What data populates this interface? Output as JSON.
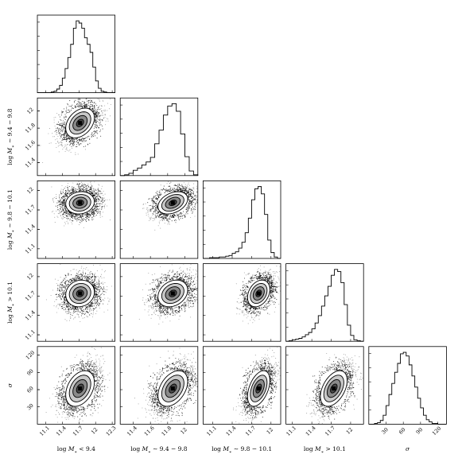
{
  "chart_data": {
    "type": "scatter",
    "variables": [
      {
        "key": "m1",
        "label": "log M_* < 9.4",
        "label_parts": [
          "log ",
          "M",
          "∗",
          " < 9.4"
        ],
        "range": [
          10.95,
          12.35
        ],
        "ticks": [
          11.1,
          11.4,
          11.7,
          12.0,
          12.3
        ],
        "mean": 11.72,
        "sd": 0.15
      },
      {
        "key": "m2",
        "label": "log M_* ~ 9.4 − 9.8",
        "label_parts": [
          "log ",
          "M",
          "∗",
          " ∼ 9.4 − 9.8"
        ],
        "range": [
          11.25,
          12.15
        ],
        "ticks": [
          11.4,
          11.6,
          11.8,
          12.0
        ],
        "mean": 11.86,
        "sd": 0.1
      },
      {
        "key": "m3",
        "label": "log M_* ~ 9.8 − 10.1",
        "label_parts": [
          "log ",
          "M",
          "∗",
          " ∼ 9.8 − 10.1"
        ],
        "range": [
          10.95,
          12.15
        ],
        "ticks": [
          11.1,
          11.4,
          11.7,
          12.0
        ],
        "mean": 11.81,
        "sd": 0.1
      },
      {
        "key": "m4",
        "label": "log M_* > 10.1",
        "label_parts": [
          "log ",
          "M",
          "∗",
          " > 10.1"
        ],
        "range": [
          11.0,
          12.2
        ],
        "ticks": [
          11.1,
          11.4,
          11.7,
          12.0
        ],
        "mean": 11.74,
        "sd": 0.12
      },
      {
        "key": "sigma",
        "label": "σ",
        "label_parts": [
          "",
          "σ",
          "",
          ""
        ],
        "range": [
          0,
          135
        ],
        "ticks": [
          30,
          60,
          90,
          120
        ],
        "mean": 62,
        "sd": 18
      }
    ],
    "histograms": [
      {
        "variable": "m1",
        "bin_edges": [
          10.95,
          11.0,
          11.05,
          11.1,
          11.15,
          11.2,
          11.25,
          11.3,
          11.35,
          11.4,
          11.45,
          11.5,
          11.55,
          11.6,
          11.65,
          11.7,
          11.75,
          11.8,
          11.85,
          11.9,
          11.95,
          12.0,
          12.05,
          12.1,
          12.15,
          12.2,
          12.25,
          12.3,
          12.35
        ],
        "counts": [
          0,
          0,
          0,
          0,
          0,
          1,
          2,
          5,
          10,
          20,
          33,
          48,
          66,
          88,
          98,
          95,
          88,
          75,
          66,
          55,
          35,
          16,
          6,
          2,
          1,
          0,
          0,
          0
        ]
      },
      {
        "variable": "m2",
        "bin_edges": [
          11.25,
          11.3,
          11.35,
          11.4,
          11.45,
          11.5,
          11.55,
          11.6,
          11.65,
          11.7,
          11.75,
          11.8,
          11.85,
          11.9,
          11.95,
          12.0,
          12.05,
          12.1,
          12.15
        ],
        "counts": [
          0,
          1,
          3,
          7,
          10,
          14,
          18,
          24,
          42,
          60,
          80,
          92,
          95,
          85,
          55,
          25,
          6,
          1
        ]
      },
      {
        "variable": "m3",
        "bin_edges": [
          10.95,
          11.0,
          11.05,
          11.1,
          11.15,
          11.2,
          11.25,
          11.3,
          11.35,
          11.4,
          11.45,
          11.5,
          11.55,
          11.6,
          11.65,
          11.7,
          11.75,
          11.8,
          11.85,
          11.9,
          11.95,
          12.0,
          12.05,
          12.1,
          12.15
        ],
        "counts": [
          0,
          0,
          1,
          1,
          1,
          2,
          2,
          3,
          4,
          7,
          9,
          14,
          22,
          35,
          55,
          80,
          95,
          98,
          88,
          60,
          25,
          8,
          2,
          0
        ]
      },
      {
        "variable": "m4",
        "bin_edges": [
          11.0,
          11.05,
          11.1,
          11.15,
          11.2,
          11.25,
          11.3,
          11.35,
          11.4,
          11.45,
          11.5,
          11.55,
          11.6,
          11.65,
          11.7,
          11.75,
          11.8,
          11.85,
          11.9,
          11.95,
          12.0,
          12.05,
          12.1,
          12.15,
          12.2
        ],
        "counts": [
          0,
          1,
          2,
          3,
          4,
          6,
          9,
          12,
          17,
          25,
          35,
          48,
          62,
          75,
          90,
          98,
          95,
          80,
          50,
          22,
          8,
          2,
          1,
          0
        ]
      },
      {
        "variable": "sigma",
        "bin_edges": [
          0,
          5,
          10,
          15,
          20,
          25,
          30,
          35,
          40,
          45,
          50,
          55,
          60,
          65,
          70,
          75,
          80,
          85,
          90,
          95,
          100,
          105,
          110,
          115,
          120,
          125,
          130,
          135
        ],
        "counts": [
          0,
          0,
          1,
          2,
          5,
          12,
          25,
          40,
          55,
          70,
          82,
          95,
          97,
          92,
          80,
          65,
          50,
          35,
          22,
          12,
          6,
          3,
          1,
          1,
          0,
          0,
          0
        ]
      }
    ],
    "pair_summaries": [
      {
        "x": "m1",
        "y": "m2",
        "correlation": 0.35
      },
      {
        "x": "m1",
        "y": "m3",
        "correlation": 0.1
      },
      {
        "x": "m2",
        "y": "m3",
        "correlation": 0.35
      },
      {
        "x": "m1",
        "y": "m4",
        "correlation": 0.1
      },
      {
        "x": "m2",
        "y": "m4",
        "correlation": 0.25
      },
      {
        "x": "m3",
        "y": "m4",
        "correlation": 0.3
      },
      {
        "x": "m1",
        "y": "sigma",
        "correlation": 0.35
      },
      {
        "x": "m2",
        "y": "sigma",
        "correlation": 0.4
      },
      {
        "x": "m3",
        "y": "sigma",
        "correlation": 0.45
      },
      {
        "x": "m4",
        "y": "sigma",
        "correlation": 0.45
      }
    ],
    "contour_levels_sigma": [
      0.5,
      1.0,
      1.5,
      2.0
    ],
    "grid": false,
    "legend": "none"
  }
}
